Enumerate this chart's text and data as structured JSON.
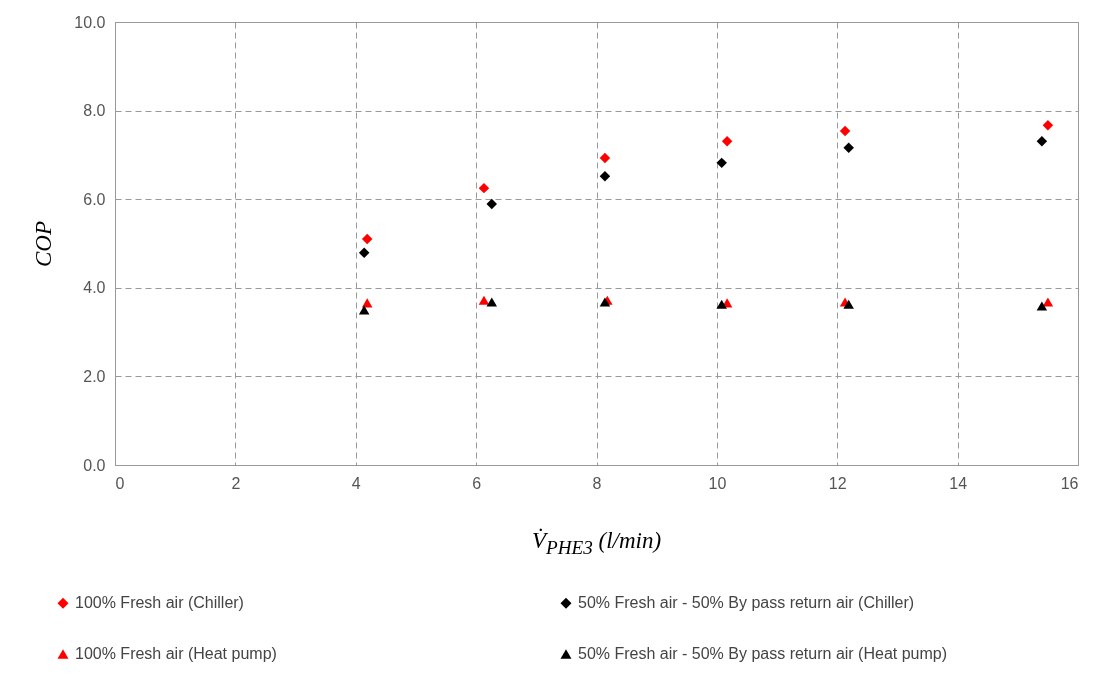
{
  "chart_data": {
    "type": "scatter",
    "xlabel": "V̇$_{PHE3}$ (l/min)",
    "ylabel": "COP",
    "xlim": [
      0,
      16
    ],
    "xticks": [
      0,
      2,
      4,
      6,
      8,
      10,
      12,
      14,
      16
    ],
    "ylim": [
      0,
      10
    ],
    "yticks": [
      {
        "value": 0,
        "label": "0.0"
      },
      {
        "value": 2,
        "label": "2.0"
      },
      {
        "value": 4,
        "label": "4.0"
      },
      {
        "value": 6,
        "label": "6.0"
      },
      {
        "value": 8,
        "label": "8.0"
      },
      {
        "value": 10,
        "label": "10.0"
      }
    ],
    "grid": true,
    "legend": "bottom",
    "series": [
      {
        "name": "100% Fresh air (Chiller)",
        "color": "#ff0000",
        "marker": "diamond",
        "x": [
          4.19,
          6.13,
          8.14,
          10.17,
          12.13,
          15.5
        ],
        "values": [
          5.1,
          6.25,
          6.93,
          7.31,
          7.54,
          7.67
        ]
      },
      {
        "name": "50% Fresh air - 50% By pass return air (Chiller)",
        "color": "#000000",
        "marker": "diamond",
        "x": [
          4.14,
          6.26,
          8.14,
          10.08,
          12.19,
          15.4
        ],
        "values": [
          4.79,
          5.89,
          6.52,
          6.82,
          7.16,
          7.31
        ]
      },
      {
        "name": "100% Fresh air (Heat pump)",
        "color": "#ff0000",
        "marker": "triangle",
        "x": [
          4.19,
          6.13,
          8.18,
          10.17,
          12.13,
          15.5
        ],
        "values": [
          3.66,
          3.72,
          3.72,
          3.66,
          3.68,
          3.68
        ]
      },
      {
        "name": "50% Fresh air - 50% By pass return air (Heat pump)",
        "color": "#000000",
        "marker": "triangle",
        "x": [
          4.14,
          6.26,
          8.14,
          10.08,
          12.19,
          15.4
        ],
        "values": [
          3.5,
          3.68,
          3.68,
          3.63,
          3.63,
          3.59
        ]
      }
    ]
  }
}
